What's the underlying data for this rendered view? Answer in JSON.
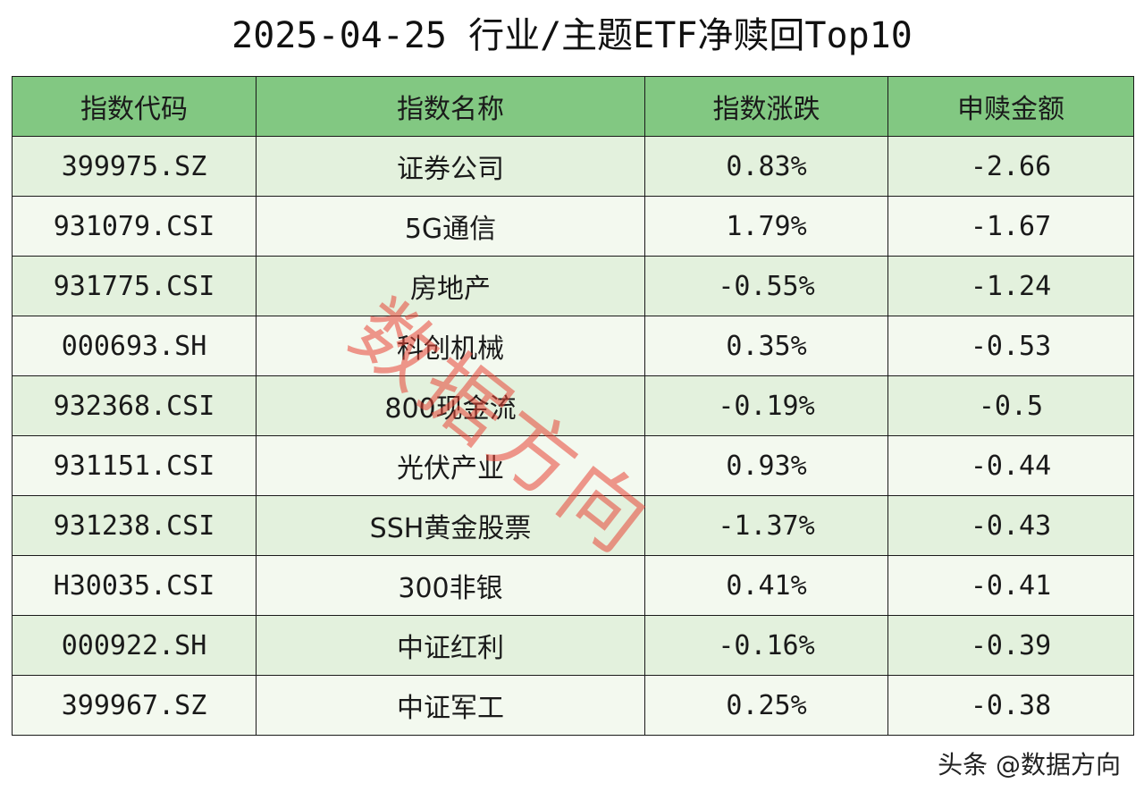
{
  "title": "2025-04-25 行业/主题ETF净赎回Top10",
  "table": {
    "headers": [
      "指数代码",
      "指数名称",
      "指数涨跌",
      "申赎金额"
    ],
    "rows": [
      [
        "399975.SZ",
        "证券公司",
        "0.83%",
        "-2.66"
      ],
      [
        "931079.CSI",
        "5G通信",
        "1.79%",
        "-1.67"
      ],
      [
        "931775.CSI",
        "房地产",
        "-0.55%",
        "-1.24"
      ],
      [
        "000693.SH",
        "科创机械",
        "0.35%",
        "-0.53"
      ],
      [
        "932368.CSI",
        "800现金流",
        "-0.19%",
        "-0.5"
      ],
      [
        "931151.CSI",
        "光伏产业",
        "0.93%",
        "-0.44"
      ],
      [
        "931238.CSI",
        "SSH黄金股票",
        "-1.37%",
        "-0.43"
      ],
      [
        "H30035.CSI",
        "300非银",
        "0.41%",
        "-0.41"
      ],
      [
        "000922.SH",
        "中证红利",
        "-0.16%",
        "-0.39"
      ],
      [
        "399967.SZ",
        "中证军工",
        "0.25%",
        "-0.38"
      ]
    ]
  },
  "watermark": "数据方向",
  "footer": {
    "credit": "头条 @数据方向"
  },
  "colors": {
    "header_bg": "#82c882",
    "row_bg_a": "#e3f1dd",
    "row_bg_b": "#f3f9ef",
    "watermark": "#e84434"
  }
}
